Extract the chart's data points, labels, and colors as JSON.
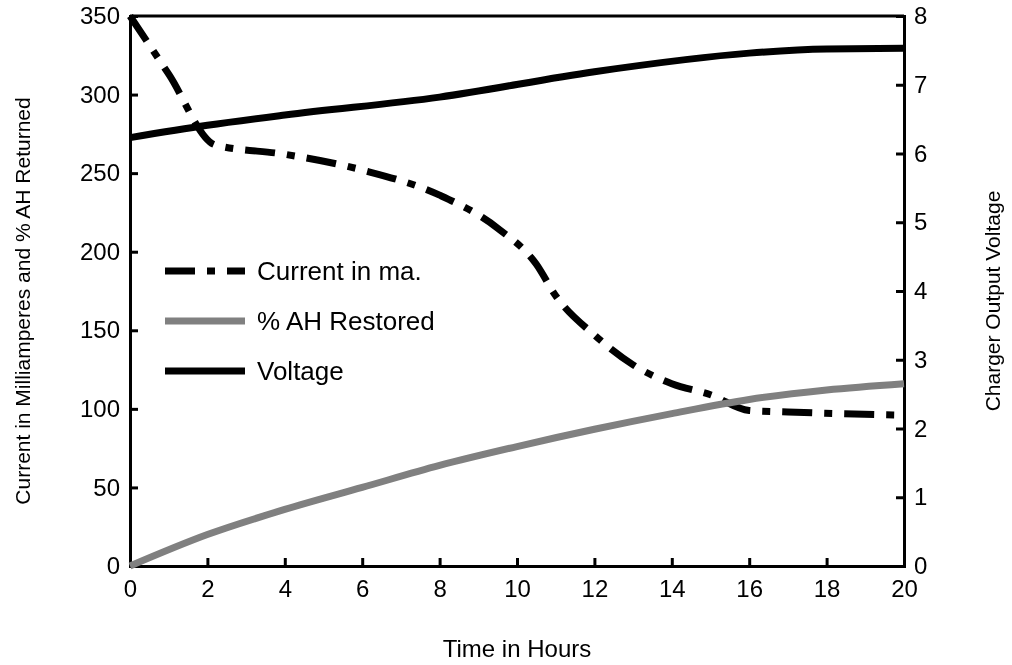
{
  "chart_data": {
    "type": "line",
    "xlabel": "Time in Hours",
    "ylabel": "Current in Milliamperes and % AH Returned",
    "y2label": "Charger Output Voltage",
    "xlim": [
      0,
      20
    ],
    "xticks": [
      0,
      2,
      4,
      6,
      8,
      10,
      12,
      14,
      16,
      18,
      20
    ],
    "ylim": [
      0,
      350
    ],
    "yticks": [
      0,
      50,
      100,
      150,
      200,
      250,
      300,
      350
    ],
    "y2lim": [
      0,
      8
    ],
    "y2ticks": [
      0,
      1,
      2,
      3,
      4,
      5,
      6,
      7,
      8
    ],
    "legend": "center left",
    "grid": false,
    "series": [
      {
        "name": "Current in ma.",
        "color": "#000000",
        "line_style": "dashed",
        "x": [
          0,
          1,
          2.2,
          4,
          6,
          8,
          9.5,
          10.5,
          11,
          12,
          13,
          14,
          15,
          16,
          17,
          20
        ],
        "values": [
          350,
          313,
          268,
          262,
          252,
          236,
          215,
          192,
          172,
          147,
          128,
          116,
          109,
          99,
          98,
          96
        ]
      },
      {
        "name": "% AH Restored",
        "color": "#808080",
        "line_style": "solid",
        "x": [
          0,
          2,
          4,
          6,
          8,
          10,
          12,
          14,
          16,
          18,
          20
        ],
        "values": [
          0,
          20,
          36,
          50,
          64,
          76,
          87,
          97,
          106,
          112,
          116
        ]
      },
      {
        "name": "Voltage",
        "color": "#000000",
        "line_style": "solid",
        "axis": "y2",
        "x": [
          0,
          2,
          4,
          8,
          12,
          16,
          18,
          20
        ],
        "values": [
          6.23,
          6.41,
          6.56,
          6.82,
          7.19,
          7.46,
          7.52,
          7.53
        ]
      }
    ]
  }
}
